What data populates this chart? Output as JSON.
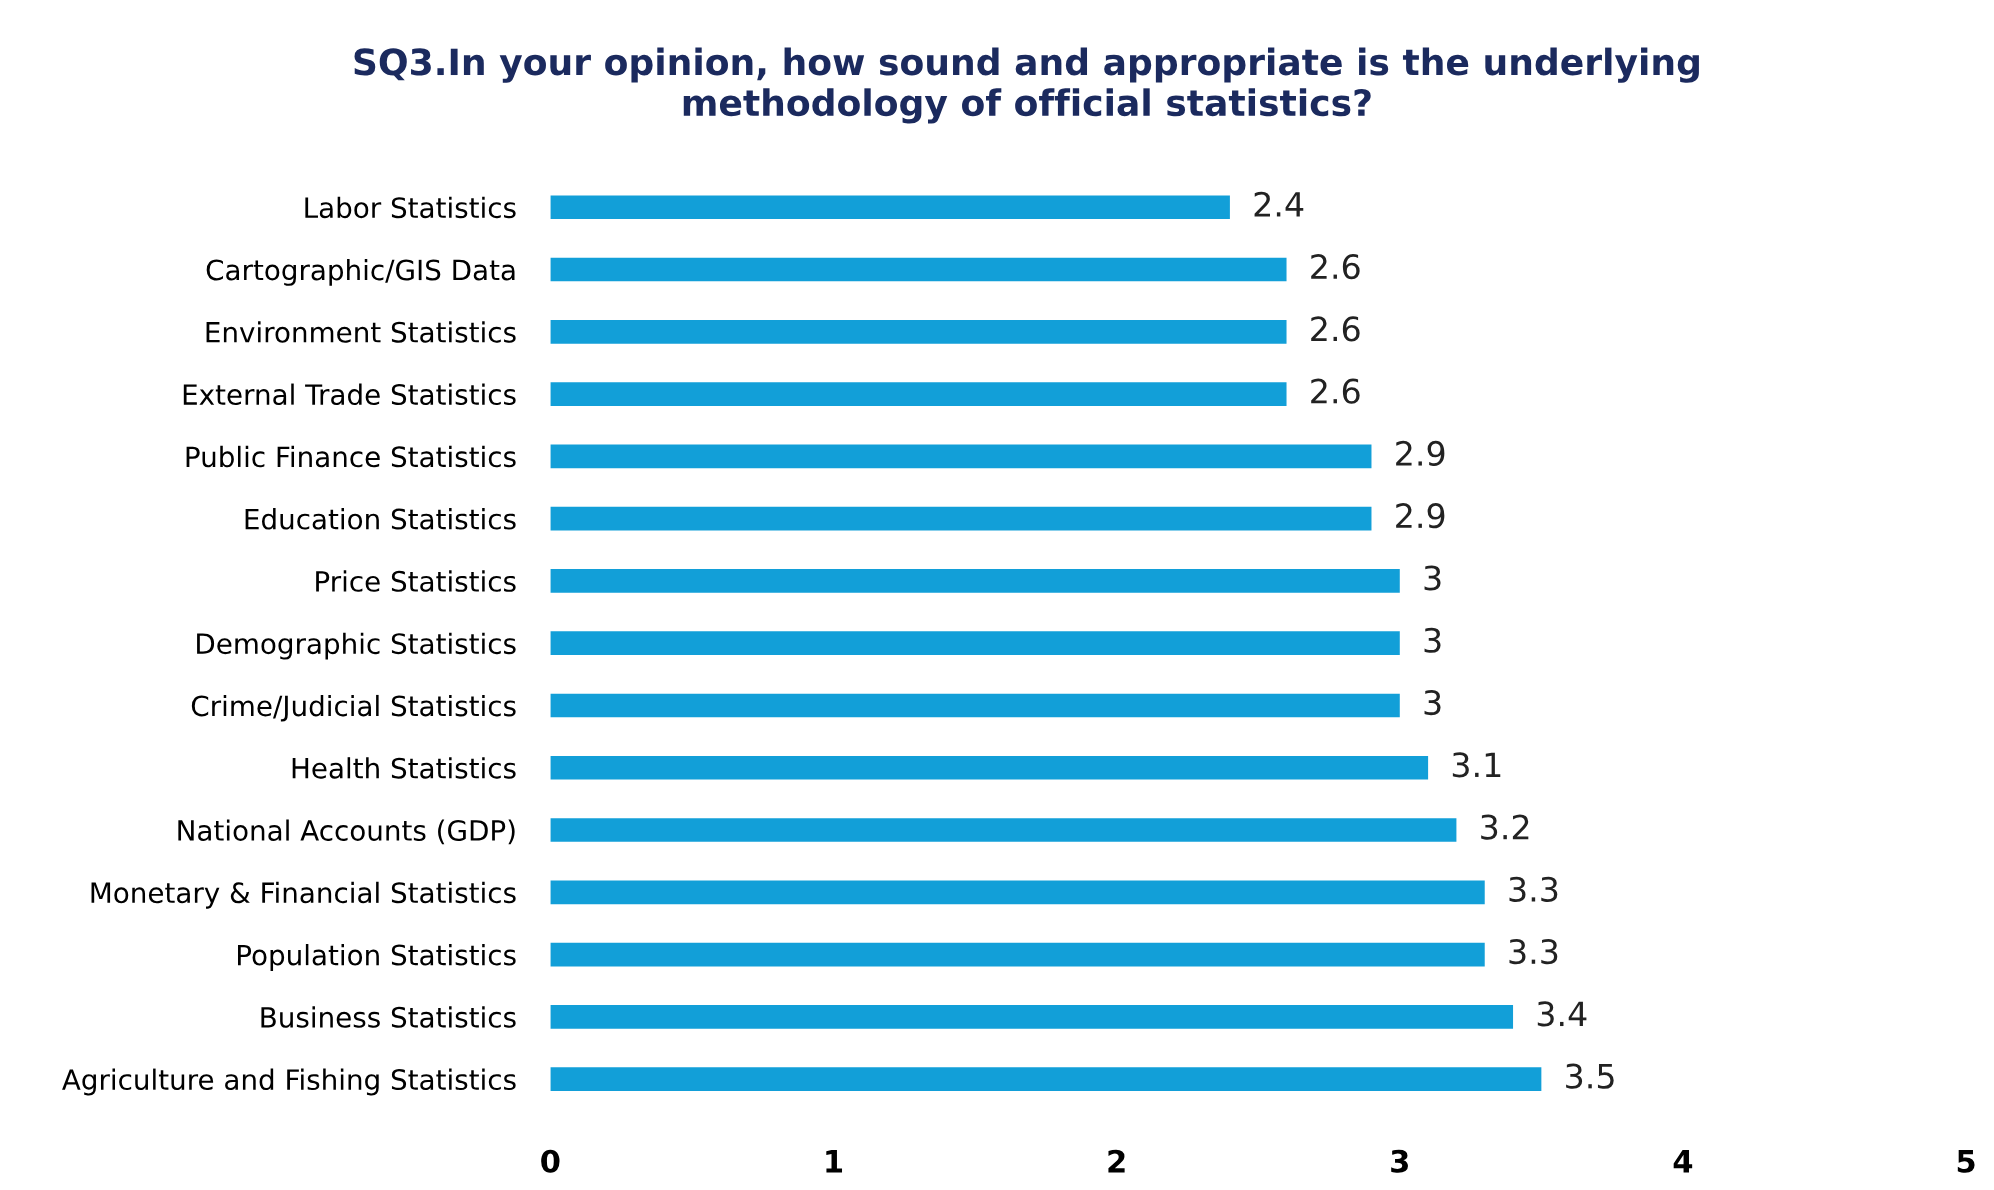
{
  "chart_data": {
    "type": "bar",
    "orientation": "horizontal",
    "title": "SQ3.In your opinion, how sound and appropriate is the underlying\nmethodology of official statistics?",
    "categories": [
      "Labor Statistics",
      "Cartographic/GIS Data",
      "Environment Statistics",
      "External Trade Statistics",
      "Public Finance Statistics",
      "Education Statistics",
      "Price Statistics",
      "Demographic Statistics",
      "Crime/Judicial Statistics",
      "Health Statistics",
      "National Accounts (GDP)",
      "Monetary & Financial Statistics",
      "Population Statistics",
      "Business Statistics",
      "Agriculture and Fishing Statistics"
    ],
    "values": [
      2.4,
      2.6,
      2.6,
      2.6,
      2.9,
      2.9,
      3,
      3,
      3,
      3.1,
      3.2,
      3.3,
      3.3,
      3.4,
      3.5
    ],
    "color": "#129fd8",
    "xlim": [
      0,
      5
    ],
    "xticks": [
      0,
      1,
      2,
      3,
      4,
      5
    ],
    "data_labels": true,
    "grid": false,
    "legend": false
  }
}
